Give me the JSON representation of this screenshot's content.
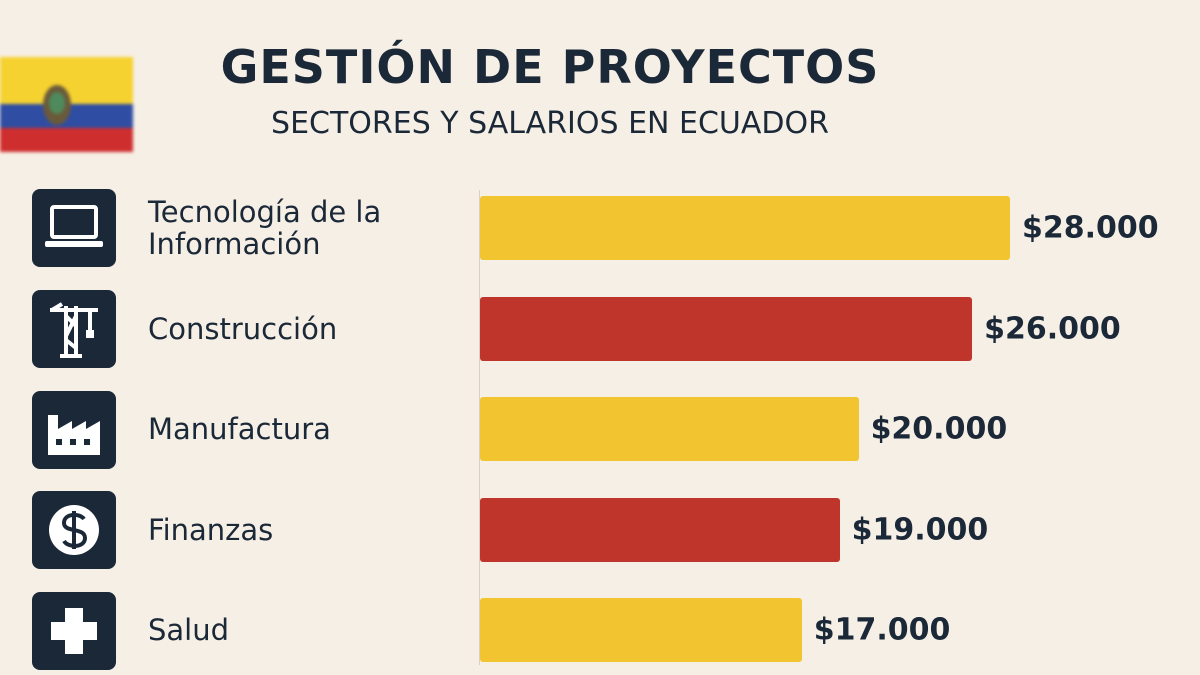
{
  "chart_data": {
    "type": "bar",
    "orientation": "horizontal",
    "title": "GESTIÓN DE PROYECTOS",
    "subtitle": "SECTORES Y SALARIOS EN ECUADOR",
    "categories": [
      "Tecnología de la Información",
      "Construcción",
      "Manufactura",
      "Finanzas",
      "Salud"
    ],
    "values": [
      28000,
      26000,
      20000,
      19000,
      17000
    ],
    "value_labels": [
      "$28.000",
      "$26.000",
      "$20.000",
      "$19.000",
      "$17.000"
    ],
    "colors": [
      "#f2c530",
      "#c0352b",
      "#f2c530",
      "#c0352b",
      "#f2c530"
    ]
  }
}
